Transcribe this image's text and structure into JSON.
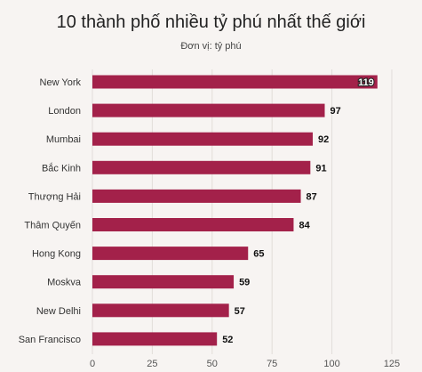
{
  "chart_data": {
    "type": "bar",
    "orientation": "horizontal",
    "title": "10 thành phố nhiều tỷ phú nhất thế giới",
    "subtitle": "Đơn vị: tỷ phú",
    "categories": [
      "New York",
      "London",
      "Mumbai",
      "Bắc Kinh",
      "Thượng Hải",
      "Thâm Quyến",
      "Hong Kong",
      "Moskva",
      "New Delhi",
      "San Francisco"
    ],
    "values": [
      119,
      97,
      92,
      91,
      87,
      84,
      65,
      59,
      57,
      52
    ],
    "xlim": [
      0,
      125
    ],
    "xticks": [
      0,
      25,
      50,
      75,
      100,
      125
    ],
    "grid": true,
    "bar_color": "#a3214a",
    "grid_color": "#e2ddd9"
  }
}
